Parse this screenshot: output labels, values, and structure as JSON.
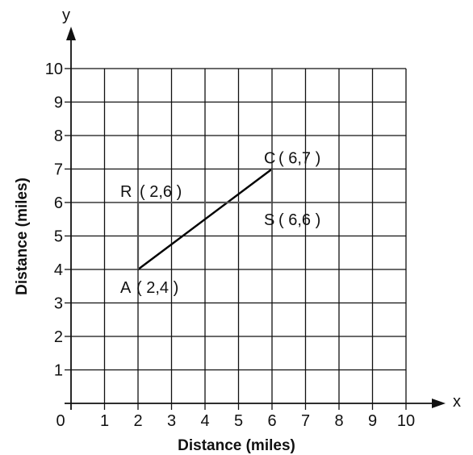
{
  "axes": {
    "x_letter": "x",
    "y_letter": "y",
    "x_title": "Distance (miles)",
    "y_title": "Distance (miles)",
    "origin_label": "0",
    "x_ticks": [
      "1",
      "2",
      "3",
      "4",
      "5",
      "6",
      "7",
      "8",
      "9",
      "10"
    ],
    "y_ticks": [
      "1",
      "2",
      "3",
      "4",
      "5",
      "6",
      "7",
      "8",
      "9",
      "10"
    ]
  },
  "chart_data": {
    "type": "line",
    "xlabel": "Distance (miles)",
    "ylabel": "Distance (miles)",
    "xlim": [
      0,
      10
    ],
    "ylim": [
      0,
      10
    ],
    "grid": true,
    "points": [
      {
        "name": "A",
        "coord": "( 2,4 )",
        "x": 2,
        "y": 4
      },
      {
        "name": "R",
        "coord": "( 2,6 )",
        "x": 2,
        "y": 6
      },
      {
        "name": "C",
        "coord": "( 6,7 )",
        "x": 6,
        "y": 7
      },
      {
        "name": "S",
        "coord": "( 6,6 )",
        "x": 6,
        "y": 6
      }
    ],
    "segments": [
      {
        "from": "A",
        "to": "C",
        "color": "#000000"
      },
      {
        "from": "A",
        "to": "R",
        "color": "#555555"
      },
      {
        "from": "R",
        "to": "S",
        "color": "#555555"
      },
      {
        "from": "S",
        "to": "C",
        "color": "#555555"
      }
    ]
  }
}
